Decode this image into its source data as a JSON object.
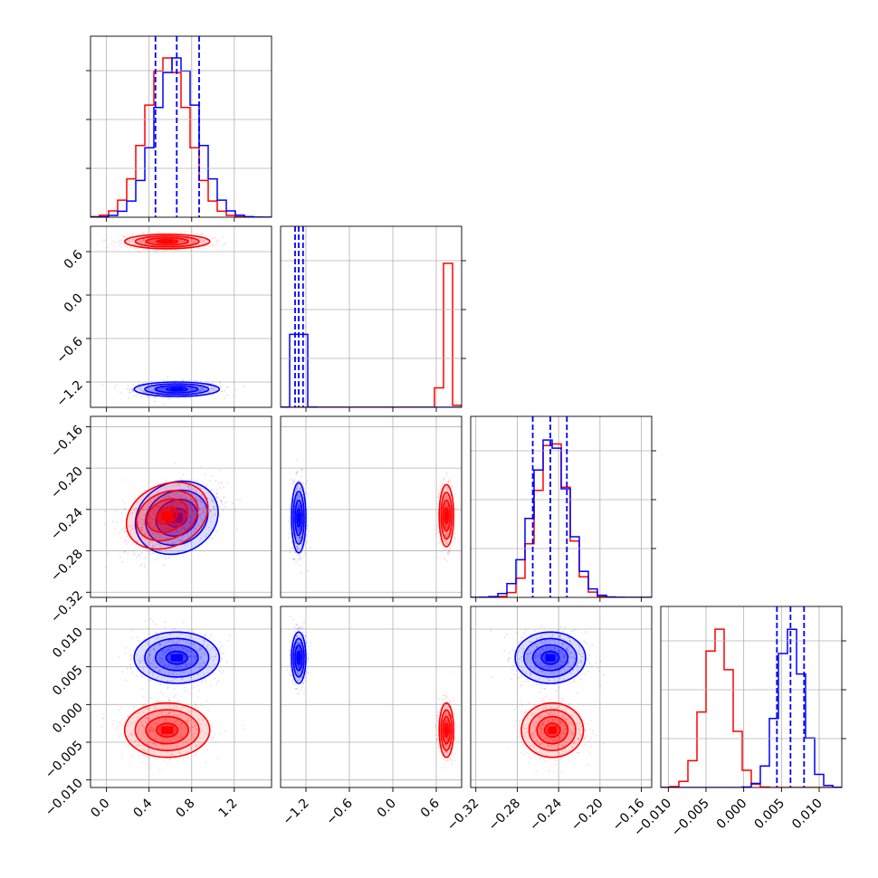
{
  "chart_data": {
    "type": "corner",
    "grid": true,
    "series": [
      {
        "color": "#0000ff",
        "style": "filled contours + scatter + step histogram"
      },
      {
        "color": "#ff0000",
        "style": "filled contours + scatter + step histogram"
      }
    ],
    "params": [
      {
        "range": [
          -0.15,
          1.55
        ],
        "ticks": [
          "0.0",
          "0.4",
          "0.8",
          "1.2"
        ],
        "blue": {
          "mean": 0.66,
          "sd": 0.2,
          "quantiles": [
            0.46,
            0.66,
            0.87
          ]
        },
        "red": {
          "mean": 0.57,
          "sd": 0.2
        }
      },
      {
        "range": [
          -1.55,
          0.95
        ],
        "ticks": [
          "-1.2",
          "-0.6",
          "0.0",
          "0.6"
        ],
        "blue": {
          "mean": -1.3,
          "sd": 0.05,
          "quantiles": [
            -1.35,
            -1.3,
            -1.24
          ]
        },
        "red": {
          "mean": 0.74,
          "sd": 0.05
        }
      },
      {
        "range": [
          -0.325,
          -0.15
        ],
        "ticks": [
          "-0.32",
          "-0.28",
          "-0.24",
          "-0.20",
          "-0.16"
        ],
        "blue": {
          "mean": -0.248,
          "sd": 0.017,
          "quantiles": [
            -0.265,
            -0.248,
            -0.232
          ]
        },
        "red": {
          "mean": -0.246,
          "sd": 0.015
        }
      },
      {
        "range": [
          -0.011,
          0.013
        ],
        "ticks": [
          "-0.010",
          "-0.005",
          "0.000",
          "0.005",
          "0.010"
        ],
        "blue": {
          "mean": 0.0062,
          "sd": 0.0017,
          "quantiles": [
            0.0044,
            0.0062,
            0.008
          ]
        },
        "red": {
          "mean": -0.0034,
          "sd": 0.0018
        }
      }
    ],
    "panel_left_ticks": {
      "1": [
        "0.6",
        "0.0",
        "-0.6",
        "-1.2"
      ],
      "2": [
        "-0.16",
        "-0.20",
        "-0.24",
        "-0.28",
        "-0.32"
      ],
      "3": [
        "0.010",
        "0.005",
        "0.000",
        "-0.005",
        "-0.010"
      ]
    }
  }
}
